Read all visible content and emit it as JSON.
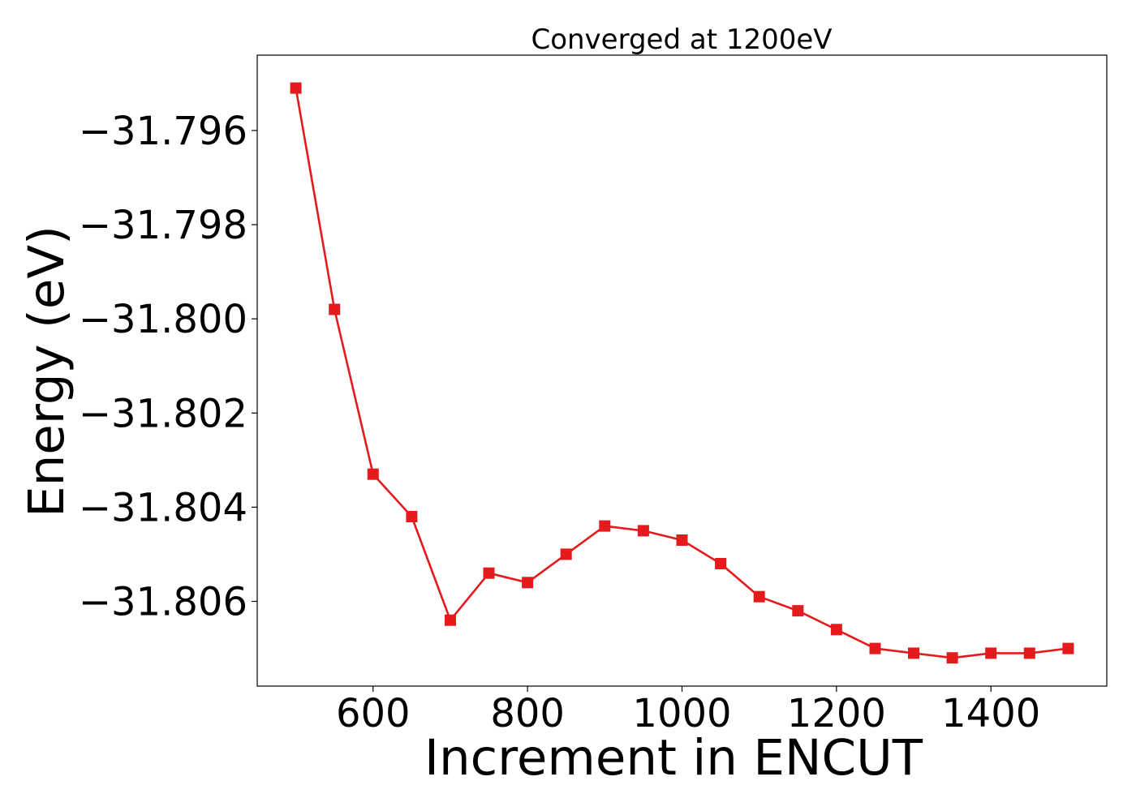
{
  "chart_data": {
    "type": "line",
    "title": "Converged at 1200eV",
    "xlabel": "Increment in ENCUT",
    "ylabel": "Energy (eV)",
    "xlim": [
      450,
      1550
    ],
    "ylim": [
      -31.8078,
      -31.7944
    ],
    "xticks": [
      600,
      800,
      1000,
      1200,
      1400
    ],
    "xtick_labels": [
      "600",
      "800",
      "1000",
      "1200",
      "1400"
    ],
    "yticks": [
      -31.796,
      -31.798,
      -31.8,
      -31.802,
      -31.804,
      -31.806
    ],
    "ytick_labels": [
      "−31.796",
      "−31.798",
      "−31.800",
      "−31.802",
      "−31.804",
      "−31.806"
    ],
    "grid": false,
    "series": [
      {
        "color": "#e41a1c",
        "marker": "square",
        "x": [
          500,
          550,
          600,
          650,
          700,
          750,
          800,
          850,
          900,
          950,
          1000,
          1050,
          1100,
          1150,
          1200,
          1250,
          1300,
          1350,
          1400,
          1450,
          1500
        ],
        "y": [
          -31.7951,
          -31.7998,
          -31.8033,
          -31.8042,
          -31.8064,
          -31.8054,
          -31.8056,
          -31.805,
          -31.8044,
          -31.8045,
          -31.8047,
          -31.8052,
          -31.8059,
          -31.8062,
          -31.8066,
          -31.807,
          -31.8071,
          -31.8072,
          -31.8071,
          -31.8071,
          -31.807
        ]
      }
    ]
  }
}
